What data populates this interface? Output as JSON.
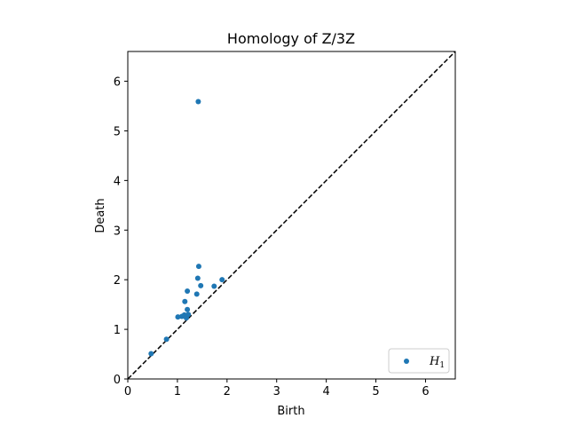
{
  "chart_data": {
    "type": "scatter",
    "title": "Homology of Z/3Z",
    "xlabel": "Birth",
    "ylabel": "Death",
    "xlim": [
      0,
      6.6
    ],
    "ylim": [
      0,
      6.6
    ],
    "xticks": [
      0,
      1,
      2,
      3,
      4,
      5,
      6
    ],
    "yticks": [
      0,
      1,
      2,
      3,
      4,
      5,
      6
    ],
    "grid": false,
    "legend_position": "lower-right",
    "diagonal": {
      "style": "dashed",
      "color": "#000000"
    },
    "series": [
      {
        "name": "H",
        "name_subscript": "1",
        "color": "#1f77b4",
        "points": [
          [
            0.47,
            0.51
          ],
          [
            0.78,
            0.8
          ],
          [
            1.01,
            1.25
          ],
          [
            1.09,
            1.26
          ],
          [
            1.14,
            1.29
          ],
          [
            1.18,
            1.23
          ],
          [
            1.22,
            1.3
          ],
          [
            1.15,
            1.56
          ],
          [
            1.2,
            1.4
          ],
          [
            1.2,
            1.77
          ],
          [
            1.39,
            1.71
          ],
          [
            1.41,
            2.03
          ],
          [
            1.43,
            2.27
          ],
          [
            1.47,
            1.88
          ],
          [
            1.74,
            1.87
          ],
          [
            1.9,
            2.0
          ],
          [
            1.42,
            5.59
          ]
        ]
      }
    ]
  }
}
